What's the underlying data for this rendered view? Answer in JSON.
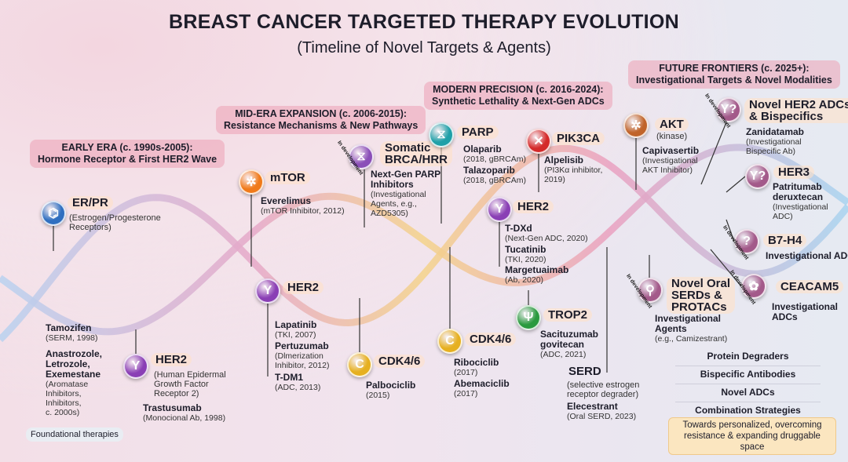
{
  "title": "BREAST CANCER TARGETED THERAPY EVOLUTION",
  "subtitle": "(Timeline of Novel Targets & Agents)",
  "eras": [
    {
      "line1": "EARLY ERA (c. 1990s-2005):",
      "line2": "Hormone Receptor & First HER2 Wave"
    },
    {
      "line1": "MID-ERA EXPANSION (c. 2006-2015):",
      "line2": "Resistance Mechanisms & New Pathways"
    },
    {
      "line1": "MODERN PRECISION (c. 2016-2024):",
      "line2": "Synthetic Lethality & Next-Gen ADCs"
    },
    {
      "line1": "FUTURE FRONTIERS (c. 2025+):",
      "line2": "Investigational Targets & Novel Modalities"
    }
  ],
  "badge": "In development",
  "targets": [
    {
      "name": "ER/PR",
      "desc": "(Estrogen/Progesterone\nReceptors)",
      "icon": "hormone-receptor-icon",
      "color": "#2f6fc0",
      "agents": [
        {
          "name": "Tamozifen",
          "detail": "(SERM, 1998)"
        },
        {
          "name": "Anastrozole,\nLetrozole,\nExemestane",
          "detail": "(Aromatase\nInhibitors,\nInhibitors,\nc. 2000s)"
        }
      ]
    },
    {
      "name": "HER2",
      "desc": "(Human Epidermal\nGrowth Factor\nReceptor 2)",
      "icon": "antibody-icon",
      "color": "#8a3fb5",
      "agents": [
        {
          "name": "Trastusumab",
          "detail": "(Monocional Ab, 1998)"
        }
      ]
    },
    {
      "name": "mTOR",
      "desc": "",
      "icon": "network-icon",
      "color": "#f07a1a",
      "agents": [
        {
          "name": "Everelimus",
          "detail": "(mTOR Inhibitor, 2012)"
        }
      ]
    },
    {
      "name": "HER2",
      "desc": "",
      "icon": "antibody-icon",
      "color": "#8a3fb5",
      "agents": [
        {
          "name": "Lapatinib",
          "detail": "(TKI, 2007)"
        },
        {
          "name": "Pertuzumab",
          "detail": "(Dlmerization\nInhibitor, 2012)"
        },
        {
          "name": "T-DM1",
          "detail": "(ADC, 2013)"
        }
      ]
    },
    {
      "name": "Somatic\nBRCA/HRR",
      "desc": "",
      "icon": "dna-icon",
      "color": "#8a4fb8",
      "in_development": true,
      "agents": [
        {
          "name": "Next-Gen PARP\nInhibitors",
          "detail": "(Investigational\nAgents, e.g.,\nAZD5305)"
        }
      ]
    },
    {
      "name": "CDK4/6",
      "desc": "",
      "icon": "cell-cycle-icon",
      "color": "#e6b020",
      "agents": [
        {
          "name": "Palbociclib",
          "detail": "(2015)"
        }
      ]
    },
    {
      "name": "PARP",
      "desc": "",
      "icon": "dna-icon",
      "color": "#1fa0a8",
      "agents": [
        {
          "name": "Olaparib",
          "detail": "(2018, gBRCAm)"
        },
        {
          "name": "Talazoparib",
          "detail": "(2018, gBRCAm)"
        }
      ]
    },
    {
      "name": "PIK3CA",
      "desc": "",
      "icon": "dna-mutation-icon",
      "color": "#d42a2a",
      "agents": [
        {
          "name": "Alpelisib",
          "detail": "(PI3Kα inhibitor,\n2019)"
        }
      ]
    },
    {
      "name": "HER2",
      "desc": "",
      "icon": "antibody-icon",
      "color": "#8a3fb5",
      "agents": [
        {
          "name": "T-DXd",
          "detail": "(Next-Gen ADC, 2020)"
        },
        {
          "name": "Tucatinib",
          "detail": "(TKI, 2020)"
        },
        {
          "name": "Margetuaimab",
          "detail": "(Ab, 2020)"
        }
      ]
    },
    {
      "name": "TROP2",
      "desc": "",
      "icon": "antibody-conjugate-icon",
      "color": "#2a9a3e",
      "agents": [
        {
          "name": "Sacituzumab\ngovitecan",
          "detail": "(ADC, 2021)"
        }
      ]
    },
    {
      "name": "CDK4/6",
      "desc": "",
      "icon": "cell-cycle-icon",
      "color": "#e6b020",
      "agents": [
        {
          "name": "Ribociclib",
          "detail": "(2017)"
        },
        {
          "name": "Abemaciclib",
          "detail": "(2017)"
        }
      ]
    },
    {
      "name": "SERD",
      "desc": "(selective estrogen\nreceptor degrader)",
      "icon": "",
      "color": "",
      "agents": [
        {
          "name": "Elecestrant",
          "detail": "(Oral SERD, 2023)"
        }
      ]
    },
    {
      "name": "AKT",
      "desc": "(kinase)",
      "icon": "network-icon",
      "color": "#c0642a",
      "agents": [
        {
          "name": "Capivasertib",
          "detail": "(Investigational\nAKT Inhibitor)"
        }
      ]
    },
    {
      "name": "Novel HER2 ADCs\n& Bispecifics",
      "desc": "",
      "icon": "antibody-question-icon",
      "color": "#a35a8a",
      "in_development": true,
      "agents": [
        {
          "name": "Zanidatamab",
          "detail": "(Investigational\nBispecific Ab)"
        }
      ]
    },
    {
      "name": "HER3",
      "desc": "",
      "icon": "antibody-question-icon",
      "color": "#a35a8a",
      "agents": [
        {
          "name": "Patritumab\nderuxtecan",
          "detail": "(Investigational\nADC)"
        }
      ]
    },
    {
      "name": "B7-H4",
      "desc": "",
      "icon": "question-icon",
      "color": "#a35a8a",
      "in_development": true,
      "agents": [
        {
          "name": "Investigational ADCs",
          "detail": ""
        }
      ]
    },
    {
      "name": "Novel Oral\nSERDs &\nPROTACs",
      "desc": "",
      "icon": "degrader-icon",
      "color": "#a35a8a",
      "in_development": true,
      "agents": [
        {
          "name": "Investigational\nAgents",
          "detail": "(e.g., Camizestrant)"
        }
      ]
    },
    {
      "name": "CEACAM5",
      "desc": "",
      "icon": "receptor-icon",
      "color": "#a35a8a",
      "in_development": true,
      "agents": [
        {
          "name": "Investigational\nADCs",
          "detail": ""
        }
      ]
    }
  ],
  "modalities": [
    "Protein Degraders",
    "Bispecific Antibodies",
    "Novel ADCs",
    "Combination Strategies"
  ],
  "foundational": "Foundational therapies",
  "footer": "Towards personalized, overcoming resistance & expanding druggable space"
}
